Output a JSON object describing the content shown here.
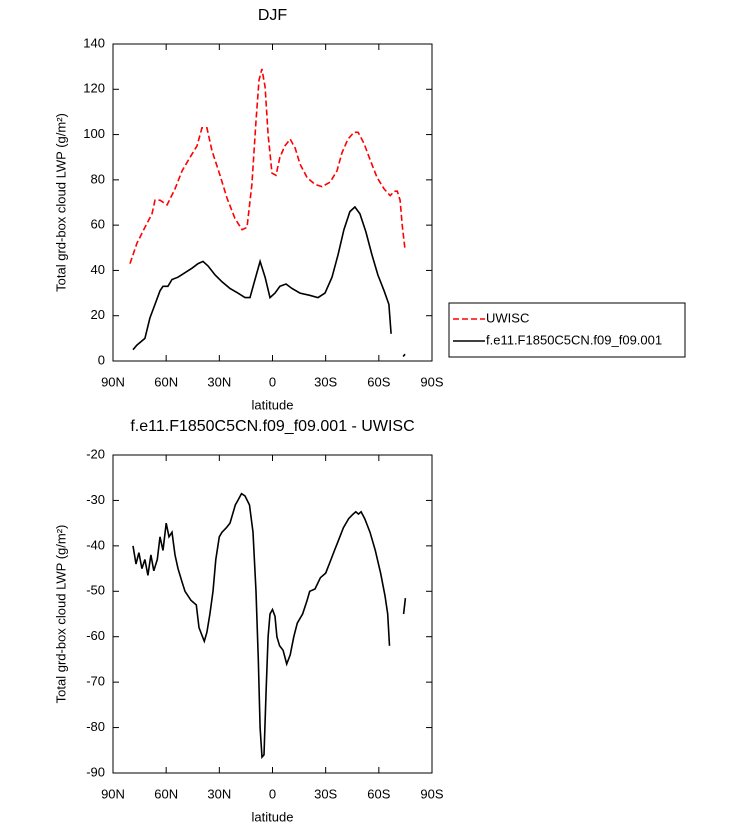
{
  "chart_data": [
    {
      "type": "line",
      "title": "DJF",
      "x_label": "latitude",
      "y_label": "Total grd-box cloud LWP (g/m²)",
      "xlim": [
        90,
        -90
      ],
      "xticks": [
        {
          "value": 90,
          "label": "90N"
        },
        {
          "value": 60,
          "label": "60N"
        },
        {
          "value": 30,
          "label": "30N"
        },
        0,
        {
          "value": -30,
          "label": "30S"
        },
        {
          "value": -60,
          "label": "60S"
        },
        {
          "value": -90,
          "label": "90S"
        }
      ],
      "ylim": [
        0,
        140
      ],
      "yticks": [
        0,
        20,
        40,
        60,
        80,
        100,
        120,
        140
      ],
      "grid": false,
      "legend": "right",
      "series": [
        {
          "name": "UWISC",
          "color": "#ff0000",
          "line_style": "dashed",
          "x": [
            80.4,
            76.5,
            72,
            68,
            66.3,
            63.5,
            59.5,
            55,
            51,
            46.5,
            42.6,
            39.8,
            37,
            34.2,
            29.6,
            25.7,
            21.2,
            17.2,
            14.4,
            11.6,
            9.3,
            7.6,
            6,
            4.2,
            2.5,
            0.3,
            -2,
            -4.2,
            -7,
            -10,
            -12.8,
            -15.5,
            -19.5,
            -24,
            -28,
            -32.5,
            -36.4,
            -39.2,
            -42.6,
            -46,
            -48.3,
            -51.7,
            -55,
            -59,
            -63,
            -66.4,
            -68.7,
            -70.4,
            -72,
            -73.2,
            -74.8
          ],
          "values": [
            43,
            52,
            59,
            65,
            71,
            71,
            69,
            76,
            84,
            90,
            95,
            103,
            103,
            93,
            82,
            72,
            63,
            58,
            59,
            78,
            106,
            124,
            129,
            121,
            100,
            83,
            82,
            90,
            95,
            98,
            94,
            87,
            81,
            78,
            77,
            79,
            84,
            92,
            98,
            101,
            101,
            96,
            89,
            81,
            76,
            73,
            75,
            75,
            71,
            60,
            49
          ]
        },
        {
          "name": "f.e11.F1850C5CN.f09_f09.001",
          "color": "#000000",
          "line_style": "solid",
          "x": [
            78.7,
            76.5,
            72,
            69.2,
            66.3,
            63.5,
            61.8,
            59,
            56.7,
            53.3,
            49.4,
            45.4,
            42,
            39.2,
            36.4,
            32.4,
            28.5,
            24,
            19.5,
            15.5,
            12.7,
            9.9,
            7,
            4.2,
            1.4,
            -1.4,
            -4.2,
            -7.6,
            -11,
            -15.5,
            -21,
            -25.7,
            -29.6,
            -33.6,
            -37,
            -40.3,
            -43.7,
            -46.5,
            -49.3,
            -52.7,
            -56.1,
            -59.5,
            -63,
            -65.7,
            -66.9,
            -70,
            -73.7,
            -74.8
          ],
          "values": [
            5,
            7,
            10,
            19,
            25,
            31,
            33,
            33,
            36,
            37,
            39,
            41,
            43,
            44,
            42,
            38,
            35,
            32,
            30,
            28,
            28,
            36,
            44,
            37,
            28,
            30,
            33,
            34,
            32,
            30,
            29,
            28,
            30,
            37,
            47,
            58,
            66,
            68,
            65,
            57,
            47,
            38,
            31,
            25,
            12,
            null,
            2,
            3
          ]
        }
      ]
    },
    {
      "type": "line",
      "title": "f.e11.F1850C5CN.f09_f09.001 - UWISC",
      "x_label": "latitude",
      "y_label": "Total grd-box cloud LWP (g/m²)",
      "xlim": [
        90,
        -90
      ],
      "xticks": [
        {
          "value": 90,
          "label": "90N"
        },
        {
          "value": 60,
          "label": "60N"
        },
        {
          "value": 30,
          "label": "30N"
        },
        0,
        {
          "value": -30,
          "label": "30S"
        },
        {
          "value": -60,
          "label": "60S"
        },
        {
          "value": -90,
          "label": "90S"
        }
      ],
      "ylim": [
        -90,
        -20
      ],
      "yticks": [
        -90,
        -80,
        -70,
        -60,
        -50,
        -40,
        -30,
        -20
      ],
      "grid": false,
      "series": [
        {
          "color": "#000000",
          "line_style": "solid",
          "x": [
            78.7,
            77,
            75.4,
            73.7,
            72,
            70.3,
            68.6,
            67,
            65,
            63.5,
            61.8,
            60,
            58.4,
            56.7,
            55,
            53.3,
            51,
            49.4,
            46,
            43,
            41.5,
            40,
            38.5,
            37,
            35.3,
            33.6,
            32,
            30,
            28.5,
            26,
            24,
            21,
            19.5,
            17.5,
            15.5,
            13,
            11,
            9.3,
            8,
            7,
            5.9,
            4.8,
            3.6,
            2.5,
            1.4,
            0,
            -1.4,
            -2.5,
            -4,
            -6,
            -8,
            -10,
            -12,
            -14,
            -17,
            -19.5,
            -21,
            -24,
            -27,
            -30,
            -33,
            -35,
            -37,
            -40,
            -43,
            -45.5,
            -47,
            -48.5,
            -50,
            -52,
            -55,
            -58,
            -61,
            -63.5,
            -65,
            -66,
            -70,
            -74,
            -75
          ],
          "values": [
            -40,
            -44,
            -41.5,
            -45,
            -43,
            -46.5,
            -42,
            -45.5,
            -43,
            -38,
            -41,
            -35,
            -38,
            -37,
            -42,
            -45,
            -48,
            -50,
            -52,
            -53,
            -58,
            -59.5,
            -61,
            -59,
            -55,
            -50,
            -43,
            -38,
            -37,
            -36,
            -35,
            -31,
            -30,
            -28.5,
            -29,
            -31,
            -37,
            -50,
            -65,
            -80,
            -86.5,
            -86,
            -72,
            -60,
            -55,
            -54,
            -55.5,
            -60,
            -62,
            -63,
            -66,
            -64,
            -60,
            -57,
            -55,
            -52,
            -50,
            -49.5,
            -47,
            -46,
            -43,
            -41,
            -39,
            -36,
            -34,
            -33,
            -32.5,
            -33,
            -32.5,
            -34,
            -37,
            -41,
            -46,
            -51,
            -55,
            -62,
            null,
            -55,
            -51.5
          ]
        }
      ]
    }
  ]
}
